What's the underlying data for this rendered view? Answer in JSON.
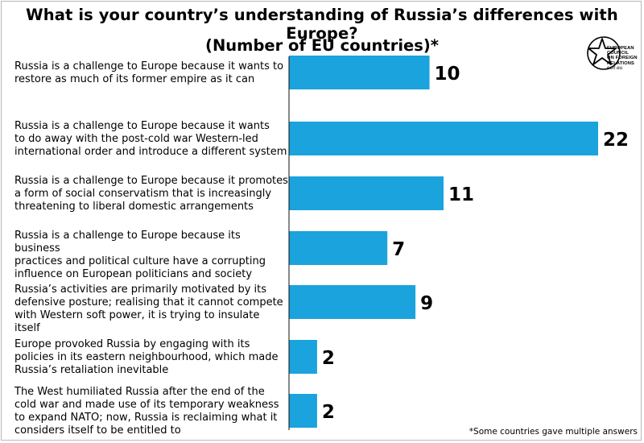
{
  "title": "What is your country’s understanding of Russia’s differences with Europe?",
  "subtitle": "(Number of EU countries)*",
  "footnote": "*Some countries gave multiple answers",
  "logo": {
    "lines": [
      "EUROPEAN",
      "COUNCIL",
      "ON FOREIGN",
      "RELATIONS"
    ],
    "url": "ecfr.eu"
  },
  "colors": {
    "bar": "#1aa3dc",
    "axis": "#111111"
  },
  "chart_data": {
    "type": "bar",
    "orientation": "horizontal",
    "categories": [
      [
        "Russia is a challenge to Europe because it wants to",
        "restore as much of its former empire as it can"
      ],
      [
        "Russia is a challenge to Europe because it wants",
        "to do away with the post-cold war Western-led",
        "international order and introduce a different system"
      ],
      [
        "Russia is a challenge to Europe because it promotes",
        "a form of social conservatism that is increasingly",
        "threatening to liberal domestic arrangements"
      ],
      [
        "Russia is a challenge to Europe because its business",
        "practices and political culture have a corrupting",
        "influence on European politicians and society"
      ],
      [
        "Russia’s activities are primarily motivated by its",
        "defensive posture; realising that it cannot compete",
        "with Western soft power, it is trying to insulate itself"
      ],
      [
        "Europe provoked Russia by engaging with its",
        "policies in its eastern neighbourhood, which made",
        "Russia’s retaliation inevitable"
      ],
      [
        "The West humiliated Russia after the end of the",
        "cold war and made use of its temporary weakness",
        "to expand NATO; now, Russia is reclaiming what it",
        "considers itself to be entitled to"
      ]
    ],
    "values": [
      10,
      22,
      11,
      7,
      9,
      2,
      2
    ],
    "xlim": [
      0,
      22
    ],
    "data_labels": [
      "10",
      "22",
      "11",
      "7",
      "9",
      "2",
      "2"
    ],
    "grid": false,
    "legend": "none"
  }
}
